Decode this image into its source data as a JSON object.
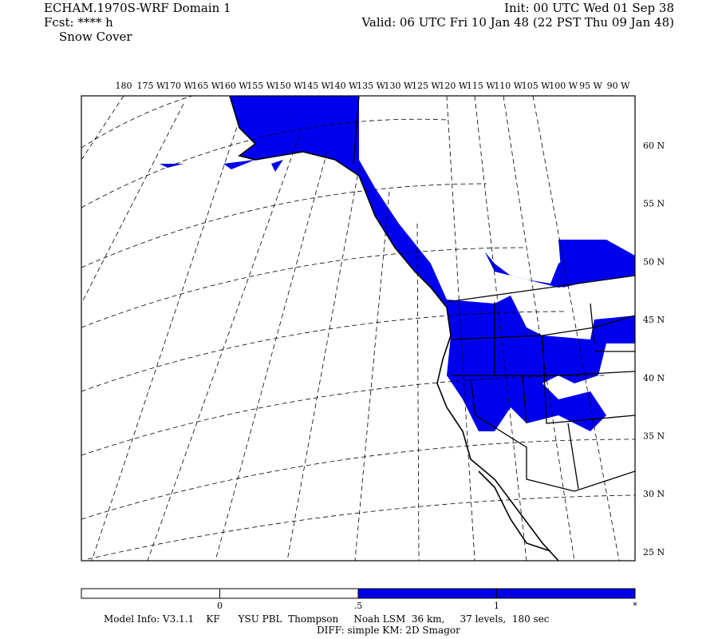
{
  "header": {
    "left": [
      "ECHAM.1970S-WRF Domain 1",
      "Fcst: **** h",
      "Snow Cover"
    ],
    "right": [
      "Init: 00 UTC Wed 01 Sep 38",
      "Valid: 06 UTC Fri 10 Jan 48 (22 PST Thu 09 Jan 48)"
    ]
  },
  "map": {
    "lon_labels": [
      "180",
      "175 W",
      "170 W",
      "165 W",
      "160 W",
      "155 W",
      "150 W",
      "145 W",
      "140 W",
      "135 W",
      "130 W",
      "125 W",
      "120 W",
      "115 W",
      "110 W",
      "105 W",
      "100 W",
      "95 W",
      "90 W"
    ],
    "lat_labels": [
      "60 N",
      "55 N",
      "50 N",
      "45 N",
      "40 N",
      "35 N",
      "30 N",
      "25 N"
    ]
  },
  "colorbar": {
    "labels": [
      "0",
      ".5",
      "1",
      "*"
    ]
  },
  "footer": [
    "Model Info: V3.1.1    KF      YSU PBL  Thompson     Noah LSM  36 km,     37 levels,  180 sec",
    "DIFF: simple KM: 2D Smagor"
  ]
}
